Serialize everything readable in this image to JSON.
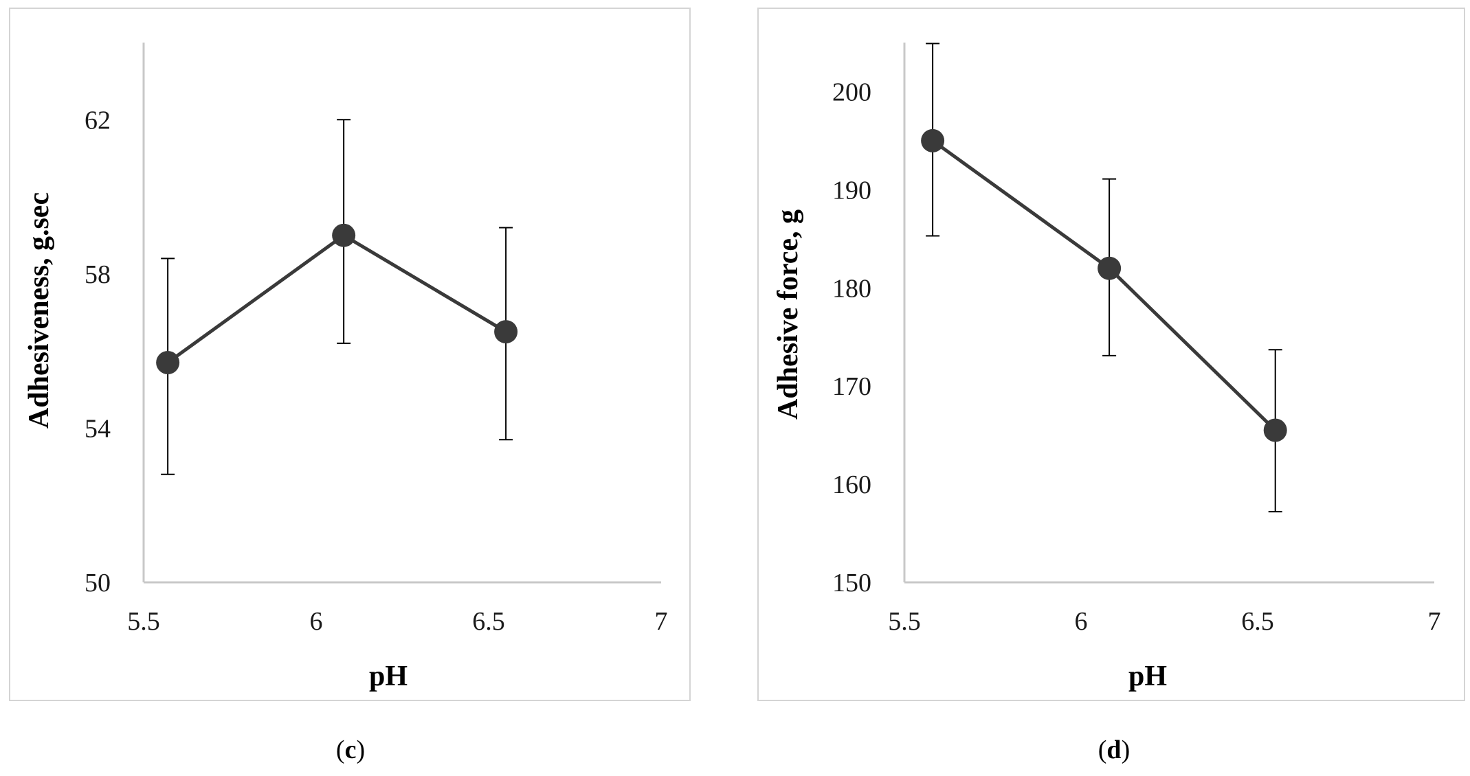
{
  "colors": {
    "frame": "#d4d4d4",
    "axis": "#c8c8c8",
    "series": "#3a3a3a",
    "error_bar": "#000000",
    "text": "#1a1a1a"
  },
  "chart_data": [
    {
      "type": "line",
      "panel": "c",
      "caption_open": "(",
      "caption_letter": "c",
      "caption_close": ")",
      "xlabel": "pH",
      "ylabel": "Adhesiveness, g.sec",
      "xlim": [
        5.5,
        7
      ],
      "ylim": [
        50,
        64
      ],
      "xticks": [
        5.5,
        6,
        6.5,
        7
      ],
      "xtick_labels": [
        "5.5",
        "6",
        "6.5",
        "7"
      ],
      "yticks": [
        50,
        54,
        58,
        62
      ],
      "ytick_labels": [
        "50",
        "54",
        "58",
        "62"
      ],
      "grid": false,
      "series": [
        {
          "name": "Adhesiveness",
          "x": [
            5.57,
            6.08,
            6.55
          ],
          "y": [
            55.7,
            59.0,
            56.5
          ],
          "err_low": [
            52.8,
            56.2,
            53.7
          ],
          "err_high": [
            58.4,
            62.0,
            59.2
          ]
        }
      ]
    },
    {
      "type": "line",
      "panel": "d",
      "caption_open": "(",
      "caption_letter": "d",
      "caption_close": ")",
      "xlabel": "pH",
      "ylabel": "Adhesive force, g",
      "xlim": [
        5.5,
        7
      ],
      "ylim": [
        150,
        205
      ],
      "xticks": [
        5.5,
        6,
        6.5,
        7
      ],
      "xtick_labels": [
        "5.5",
        "6",
        "6.5",
        "7"
      ],
      "yticks": [
        150,
        160,
        170,
        180,
        190,
        200
      ],
      "ytick_labels": [
        "150",
        "160",
        "170",
        "180",
        "190",
        "200"
      ],
      "grid": false,
      "series": [
        {
          "name": "Adhesive force",
          "x": [
            5.58,
            6.08,
            6.55
          ],
          "y": [
            195.0,
            182.0,
            165.5
          ],
          "err_low": [
            185.3,
            173.1,
            157.2
          ],
          "err_high": [
            204.9,
            191.1,
            173.7
          ]
        }
      ]
    }
  ]
}
